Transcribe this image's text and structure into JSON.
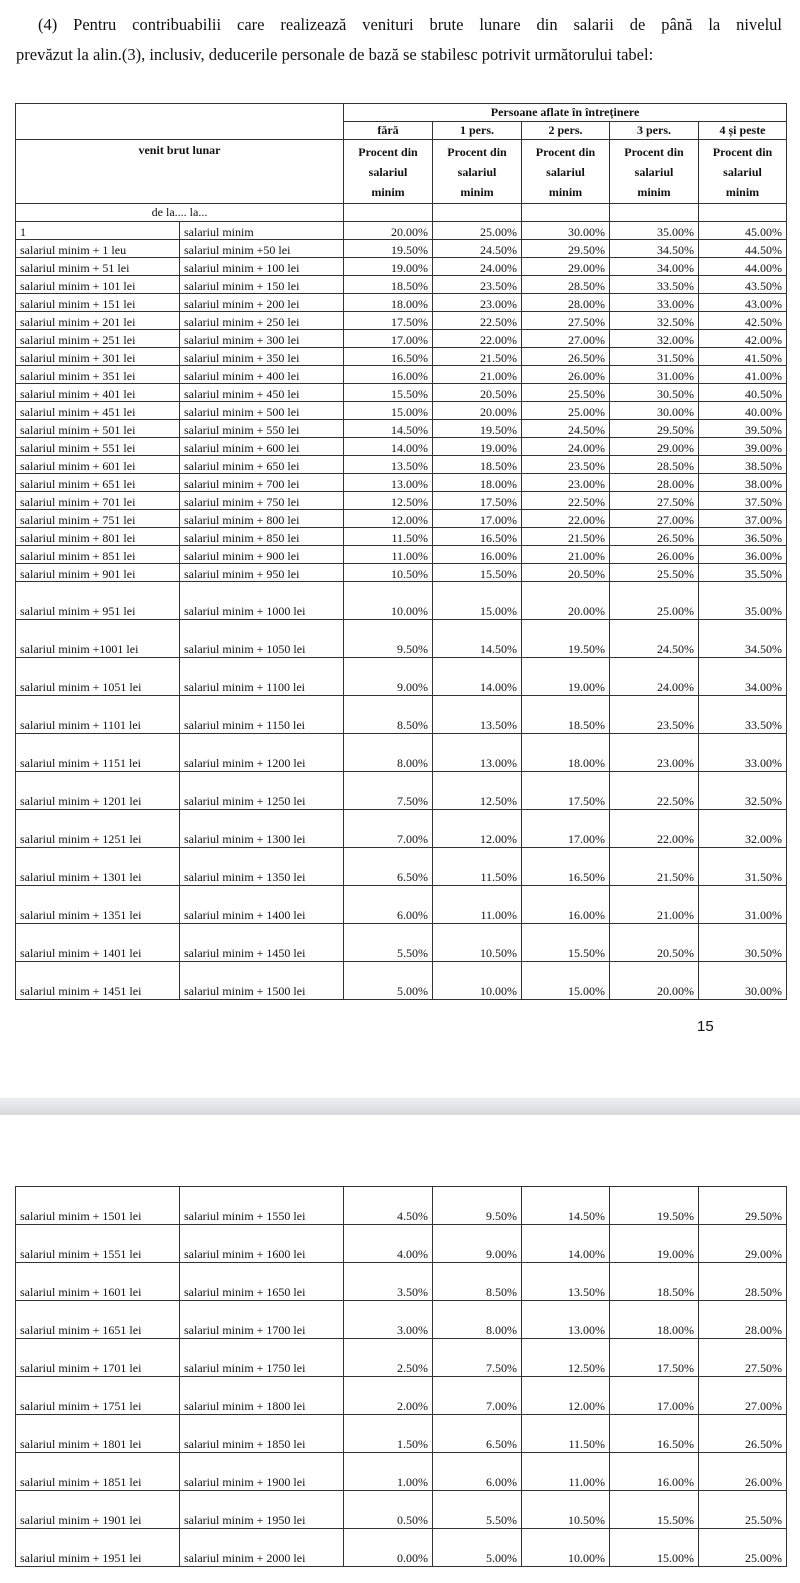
{
  "intro": {
    "line1": "(4) Pentru contribuabilii care realizează venituri brute lunare din salarii de până la nivelul",
    "line2": "prevăzut la alin.(3), inclusiv, deducerile personale de bază se stabilesc potrivit următorului tabel:"
  },
  "header": {
    "group": "Persoane aflate în întreținere",
    "columns": [
      "fără",
      "1 pers.",
      "2 pers.",
      "3 pers.",
      "4 și peste"
    ],
    "venit": "venit brut lunar",
    "procent": [
      "Procent  din",
      "salariul",
      "minim"
    ],
    "procent_alt": [
      "Procent din",
      "salariul",
      "minim"
    ],
    "range": "de la.... la..."
  },
  "page_number": "15",
  "table1_short": [
    [
      "1",
      "salariul minim",
      "20.00%",
      "25.00%",
      "30.00%",
      "35.00%",
      "45.00%"
    ],
    [
      "salariul minim + 1 leu",
      "salariul minim +50 lei",
      "19.50%",
      "24.50%",
      "29.50%",
      "34.50%",
      "44.50%"
    ],
    [
      "salariul minim + 51 lei",
      "salariul minim + 100 lei",
      "19.00%",
      "24.00%",
      "29.00%",
      "34.00%",
      "44.00%"
    ],
    [
      "salariul minim + 101 lei",
      "salariul minim + 150 lei",
      "18.50%",
      "23.50%",
      "28.50%",
      "33.50%",
      "43.50%"
    ],
    [
      "salariul minim + 151 lei",
      "salariul minim + 200 lei",
      "18.00%",
      "23.00%",
      "28.00%",
      "33.00%",
      "43.00%"
    ],
    [
      "salariul minim + 201 lei",
      "salariul minim + 250 lei",
      "17.50%",
      "22.50%",
      "27.50%",
      "32.50%",
      "42.50%"
    ],
    [
      "salariul minim + 251 lei",
      "salariul minim + 300 lei",
      "17.00%",
      "22.00%",
      "27.00%",
      "32.00%",
      "42.00%"
    ],
    [
      "salariul minim + 301 lei",
      "salariul minim + 350 lei",
      "16.50%",
      "21.50%",
      "26.50%",
      "31.50%",
      "41.50%"
    ],
    [
      "salariul minim + 351 lei",
      "salariul minim + 400 lei",
      "16.00%",
      "21.00%",
      "26.00%",
      "31.00%",
      "41.00%"
    ],
    [
      "salariul minim + 401 lei",
      "salariul minim + 450 lei",
      "15.50%",
      "20.50%",
      "25.50%",
      "30.50%",
      "40.50%"
    ],
    [
      "salariul minim + 451 lei",
      "salariul minim + 500 lei",
      "15.00%",
      "20.00%",
      "25.00%",
      "30.00%",
      "40.00%"
    ],
    [
      "salariul minim + 501 lei",
      "salariul minim + 550 lei",
      "14.50%",
      "19.50%",
      "24.50%",
      "29.50%",
      "39.50%"
    ],
    [
      "salariul minim + 551 lei",
      "salariul minim + 600 lei",
      "14.00%",
      "19.00%",
      "24.00%",
      "29.00%",
      "39.00%"
    ],
    [
      "salariul minim + 601 lei",
      "salariul minim + 650 lei",
      "13.50%",
      "18.50%",
      "23.50%",
      "28.50%",
      "38.50%"
    ],
    [
      "salariul minim + 651 lei",
      "salariul minim + 700 lei",
      "13.00%",
      "18.00%",
      "23.00%",
      "28.00%",
      "38.00%"
    ],
    [
      "salariul minim + 701 lei",
      "salariul minim + 750 lei",
      "12.50%",
      "17.50%",
      "22.50%",
      "27.50%",
      "37.50%"
    ],
    [
      "salariul minim + 751 lei",
      "salariul minim + 800 lei",
      "12.00%",
      "17.00%",
      "22.00%",
      "27.00%",
      "37.00%"
    ],
    [
      "salariul minim + 801 lei",
      "salariul minim + 850 lei",
      "11.50%",
      "16.50%",
      "21.50%",
      "26.50%",
      "36.50%"
    ],
    [
      "salariul minim + 851 lei",
      "salariul minim + 900 lei",
      "11.00%",
      "16.00%",
      "21.00%",
      "26.00%",
      "36.00%"
    ],
    [
      "salariul minim + 901 lei",
      "salariul minim + 950 lei",
      "10.50%",
      "15.50%",
      "20.50%",
      "25.50%",
      "35.50%"
    ]
  ],
  "table1_tall": [
    [
      "salariul minim + 951 lei",
      "salariul minim + 1000 lei",
      "10.00%",
      "15.00%",
      "20.00%",
      "25.00%",
      "35.00%"
    ],
    [
      "salariul minim +1001 lei",
      "salariul minim + 1050 lei",
      "9.50%",
      "14.50%",
      "19.50%",
      "24.50%",
      "34.50%"
    ],
    [
      "salariul minim + 1051 lei",
      "salariul minim + 1100 lei",
      "9.00%",
      "14.00%",
      "19.00%",
      "24.00%",
      "34.00%"
    ],
    [
      "salariul minim + 1101 lei",
      "salariul minim + 1150 lei",
      "8.50%",
      "13.50%",
      "18.50%",
      "23.50%",
      "33.50%"
    ],
    [
      "salariul minim + 1151 lei",
      "salariul minim + 1200 lei",
      "8.00%",
      "13.00%",
      "18.00%",
      "23.00%",
      "33.00%"
    ],
    [
      "salariul minim + 1201 lei",
      "salariul minim + 1250 lei",
      "7.50%",
      "12.50%",
      "17.50%",
      "22.50%",
      "32.50%"
    ],
    [
      "salariul minim + 1251 lei",
      "salariul minim + 1300 lei",
      "7.00%",
      "12.00%",
      "17.00%",
      "22.00%",
      "32.00%"
    ],
    [
      "salariul minim + 1301 lei",
      "salariul minim + 1350 lei",
      "6.50%",
      "11.50%",
      "16.50%",
      "21.50%",
      "31.50%"
    ],
    [
      "salariul minim + 1351 lei",
      "salariul minim + 1400 lei",
      "6.00%",
      "11.00%",
      "16.00%",
      "21.00%",
      "31.00%"
    ],
    [
      "salariul minim + 1401 lei",
      "salariul minim + 1450 lei",
      "5.50%",
      "10.50%",
      "15.50%",
      "20.50%",
      "30.50%"
    ],
    [
      "salariul minim + 1451 lei",
      "salariul minim + 1500 lei",
      "5.00%",
      "10.00%",
      "15.00%",
      "20.00%",
      "30.00%"
    ]
  ],
  "table2": [
    [
      "salariul minim + 1501 lei",
      "salariul minim + 1550 lei",
      "4.50%",
      "9.50%",
      "14.50%",
      "19.50%",
      "29.50%"
    ],
    [
      "salariul minim + 1551 lei",
      "salariul minim + 1600 lei",
      "4.00%",
      "9.00%",
      "14.00%",
      "19.00%",
      "29.00%"
    ],
    [
      "salariul minim + 1601 lei",
      "salariul minim + 1650 lei",
      "3.50%",
      "8.50%",
      "13.50%",
      "18.50%",
      "28.50%"
    ],
    [
      "salariul minim + 1651 lei",
      "salariul minim + 1700 lei",
      "3.00%",
      "8.00%",
      "13.00%",
      "18.00%",
      "28.00%"
    ],
    [
      "salariul minim + 1701 lei",
      "salariul minim + 1750 lei",
      "2.50%",
      "7.50%",
      "12.50%",
      "17.50%",
      "27.50%"
    ],
    [
      "salariul minim + 1751 lei",
      "salariul minim + 1800 lei",
      "2.00%",
      "7.00%",
      "12.00%",
      "17.00%",
      "27.00%"
    ],
    [
      "salariul minim + 1801 lei",
      "salariul minim + 1850 lei",
      "1.50%",
      "6.50%",
      "11.50%",
      "16.50%",
      "26.50%"
    ],
    [
      "salariul minim + 1851 lei",
      "salariul minim + 1900 lei",
      "1.00%",
      "6.00%",
      "11.00%",
      "16.00%",
      "26.00%"
    ],
    [
      "salariul minim + 1901 lei",
      "salariul minim + 1950 lei",
      "0.50%",
      "5.50%",
      "10.50%",
      "15.50%",
      "25.50%"
    ],
    [
      "salariul minim + 1951 lei",
      "salariul minim + 2000 lei",
      "0.00%",
      "5.00%",
      "10.00%",
      "15.00%",
      "25.00%"
    ]
  ]
}
